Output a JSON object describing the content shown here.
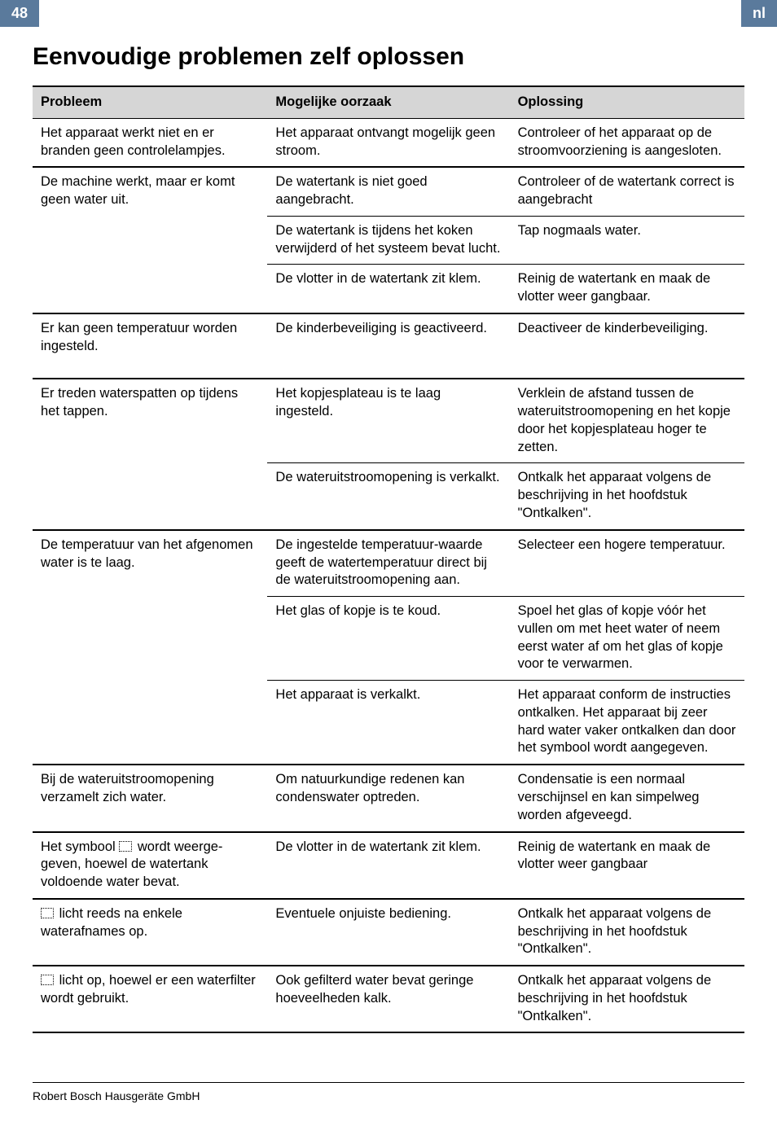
{
  "header": {
    "page_number": "48",
    "lang": "nl"
  },
  "title": "Eenvoudige problemen zelf oplossen",
  "columns": {
    "c1": "Probleem",
    "c2": "Mogelijke oorzaak",
    "c3": "Oplossing"
  },
  "rows": [
    {
      "problem": "Het apparaat werkt niet en er branden geen controlelampjes.",
      "cause": "Het apparaat ontvangt mogelijk geen stroom.",
      "solution": "Controleer of het apparaat op de stroomvoorziening is aangesloten.",
      "sep": "thin",
      "rowspan": 1
    },
    {
      "problem": "De machine werkt, maar er komt geen water uit.",
      "cause": "De watertank is niet goed aangebracht.",
      "solution": "Controleer of de watertank correct is aangebracht",
      "sep": "thick",
      "rowspan": 3
    },
    {
      "cause": "De watertank is tijdens het koken verwijderd of het systeem bevat lucht.",
      "solution": "Tap nogmaals water.",
      "sep": "thin"
    },
    {
      "cause": "De vlotter in de watertank zit klem.",
      "solution": "Reinig de watertank en maak de vlotter weer gangbaar.",
      "sep": "thin"
    },
    {
      "problem": "Er kan geen temperatuur worden ingesteld.",
      "cause": "De kinderbeveiliging is geactiveerd.",
      "solution": "Deactiveer de kinderbeveiliging.",
      "sep": "thick",
      "rowspan": 1,
      "tall": true
    },
    {
      "problem": "Er treden waterspatten op tijdens het tappen.",
      "cause": "Het kopjesplateau is te laag ingesteld.",
      "solution": "Verklein de afstand tussen de wateruitstroomopening en het kopje door het kopjesplateau hoger te zetten.",
      "sep": "thick",
      "rowspan": 2
    },
    {
      "cause": "De wateruitstroomopening is verkalkt.",
      "solution": "Ontkalk het apparaat volgens de beschrijving in het hoofdstuk \"Ontkalken\".",
      "sep": "thin"
    },
    {
      "problem": "De temperatuur van het afgenomen water is te laag.",
      "cause": "De ingestelde temperatuur-waarde geeft de watertemperatuur direct bij de wateruitstroomopening aan.",
      "solution": "Selecteer een hogere temperatuur.",
      "sep": "thick",
      "rowspan": 3
    },
    {
      "cause": "Het glas of kopje is te koud.",
      "solution": "Spoel het glas of kopje vóór het vullen om met heet water of neem eerst water af om het glas of kopje voor te verwarmen.",
      "sep": "thin"
    },
    {
      "cause": "Het apparaat is verkalkt.",
      "solution": "Het apparaat conform de instructies ontkalken. Het apparaat bij zeer hard water vaker ontkalken dan door het symbool wordt aangegeven.",
      "sep": "thin"
    },
    {
      "problem": "Bij de wateruitstroomopening verzamelt zich water.",
      "cause": "Om natuurkundige redenen kan condenswater optreden.",
      "solution": "Condensatie is een normaal verschijnsel en kan simpelweg worden afgeveegd.",
      "sep": "thick",
      "rowspan": 1
    },
    {
      "problem_prefix": "Het symbool ",
      "problem_icon": true,
      "problem_suffix": " wordt weerge-geven, hoewel de watertank voldoende water bevat.",
      "cause": "De vlotter in de watertank zit klem.",
      "solution": "Reinig de watertank en maak de vlotter weer gangbaar",
      "sep": "thick",
      "rowspan": 1
    },
    {
      "problem_icon": true,
      "problem_suffix": " licht reeds na enkele waterafnames op.",
      "cause": "Eventuele onjuiste bediening.",
      "solution": "Ontkalk het apparaat volgens de beschrijving in het hoofdstuk \"Ontkalken\".",
      "sep": "thick",
      "rowspan": 1
    },
    {
      "problem_icon": true,
      "problem_suffix": " licht op, hoewel er een waterfilter wordt gebruikt.",
      "cause": "Ook gefilterd water bevat geringe hoeveelheden kalk.",
      "solution": "Ontkalk het apparaat volgens de beschrijving in het hoofdstuk \"Ontkalken\".",
      "sep": "thick",
      "rowspan": 1,
      "last": true
    }
  ],
  "footer": "Robert Bosch Hausgeräte GmbH",
  "style": {
    "header_bg": "#5a7a9c",
    "header_fg": "#ffffff",
    "th_bg": "#d6d6d6",
    "font_body": 16.5,
    "font_title": 30
  }
}
